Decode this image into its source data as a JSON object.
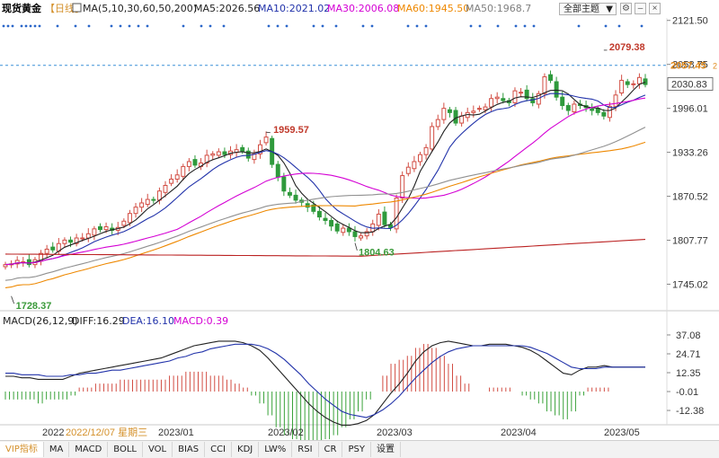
{
  "header": {
    "title": "现货黄金",
    "period": "日线",
    "ma_params": "MA(5,10,30,60,50,200)",
    "ma5": "MA5:2026.56",
    "ma10": "MA10:2021.02",
    "ma30": "MA30:2006.08",
    "ma60": "MA60:1945.50",
    "ma50": "MA50:1968.7",
    "theme_button": "全部主题",
    "settings_icon": "gear-icon",
    "minimize_icon": "minimize-icon",
    "close_icon": "close-icon",
    "colors": {
      "ma5": "#222222",
      "ma10": "#2233aa",
      "ma30": "#d400d4",
      "ma60": "#ee8800",
      "ma50": "#909090",
      "ma200": "#bb2222"
    }
  },
  "price_axis": {
    "ticks": [
      "2121.50",
      "2058.75",
      "1996.01",
      "1933.26",
      "1870.52",
      "1807.77",
      "1745.02"
    ],
    "current_price": "2057.45",
    "last_price": "2030.83"
  },
  "annotations": {
    "high_1": "1959.57",
    "low_1": "1804.63",
    "start_low": "1728.37",
    "high_2": "2079.38"
  },
  "macd": {
    "title": "MACD(26,12,9)",
    "diff": "DIFF:16.29",
    "dea": "DEA:16.10",
    "macd": "MACD:0.39",
    "ticks": [
      "37.08",
      "24.71",
      "12.35",
      "-0.01",
      "-12.38"
    ]
  },
  "time_axis": {
    "labels": [
      "2022",
      "2023/01",
      "2023/02",
      "2023/03",
      "2023/04",
      "2023/05"
    ],
    "cursor_date": "2022/12/07 星期三"
  },
  "tabs": [
    "VIP指标",
    "MA",
    "MACD",
    "BOLL",
    "VOL",
    "BIAS",
    "CCI",
    "KDJ",
    "LW%",
    "RSI",
    "CR",
    "PSY",
    "设置"
  ],
  "active_tab": "VIP指标",
  "chart_data": {
    "type": "candlestick",
    "date_range": [
      "2022/12/07",
      "2023/05"
    ],
    "ylim": [
      1720,
      2125
    ],
    "close": [
      1773,
      1774,
      1779,
      1777,
      1773,
      1780,
      1789,
      1795,
      1794,
      1803,
      1808,
      1805,
      1811,
      1811,
      1817,
      1824,
      1823,
      1827,
      1822,
      1826,
      1835,
      1846,
      1855,
      1861,
      1866,
      1865,
      1878,
      1886,
      1895,
      1901,
      1913,
      1920,
      1915,
      1918,
      1929,
      1931,
      1934,
      1930,
      1935,
      1937,
      1935,
      1925,
      1931,
      1944,
      1955,
      1916,
      1898,
      1878,
      1872,
      1865,
      1862,
      1855,
      1849,
      1841,
      1836,
      1828,
      1821,
      1825,
      1820,
      1813,
      1814,
      1820,
      1831,
      1845,
      1830,
      1826,
      1868,
      1900,
      1912,
      1920,
      1930,
      1940,
      1970,
      1980,
      1996,
      1990,
      1975,
      1985,
      1990,
      1992,
      1996,
      1998,
      2010,
      2012,
      2007,
      2004,
      2021,
      2019,
      2010,
      2004,
      2017,
      2041,
      2036,
      2012,
      2000,
      1993,
      2002,
      2000,
      1997,
      1993,
      1990,
      1985,
      1999,
      2015,
      2036,
      2030,
      2031,
      2040,
      2030
    ],
    "macd_diff": [
      10,
      10,
      9,
      9,
      8,
      8,
      8,
      8,
      10,
      12,
      13,
      14,
      15,
      16,
      17,
      18,
      19,
      20,
      21,
      22,
      24,
      26,
      28,
      30,
      31,
      32,
      33,
      33,
      33,
      32,
      30,
      27,
      22,
      16,
      10,
      4,
      -2,
      -8,
      -13,
      -17,
      -20,
      -22,
      -22,
      -21,
      -19,
      -15,
      -8,
      -1,
      5,
      12,
      20,
      26,
      30,
      32,
      33,
      32,
      31,
      30,
      30,
      31,
      31,
      31,
      30,
      29,
      27,
      24,
      20,
      16,
      12,
      11,
      14,
      16,
      16,
      17,
      16,
      16,
      16,
      16,
      16
    ],
    "macd_dea": [
      12,
      12,
      11,
      11,
      11,
      10,
      10,
      10,
      11,
      11,
      12,
      12,
      13,
      14,
      14,
      15,
      16,
      17,
      18,
      19,
      20,
      22,
      23,
      25,
      26,
      28,
      29,
      30,
      31,
      31,
      31,
      30,
      28,
      25,
      21,
      16,
      11,
      5,
      0,
      -5,
      -9,
      -13,
      -15,
      -16,
      -17,
      -15,
      -12,
      -8,
      -3,
      3,
      9,
      14,
      19,
      23,
      26,
      28,
      29,
      30,
      30,
      30,
      30,
      30,
      30,
      30,
      29,
      27,
      25,
      22,
      19,
      16,
      15,
      15,
      15,
      16,
      16,
      16,
      16,
      16,
      16
    ],
    "series": [
      {
        "name": "MA5",
        "color": "#222222"
      },
      {
        "name": "MA10",
        "color": "#2233aa"
      },
      {
        "name": "MA30",
        "color": "#d400d4"
      },
      {
        "name": "MA60",
        "color": "#ee8800"
      },
      {
        "name": "MA50",
        "color": "#909090"
      },
      {
        "name": "MA200",
        "color": "#bb2222"
      }
    ]
  }
}
